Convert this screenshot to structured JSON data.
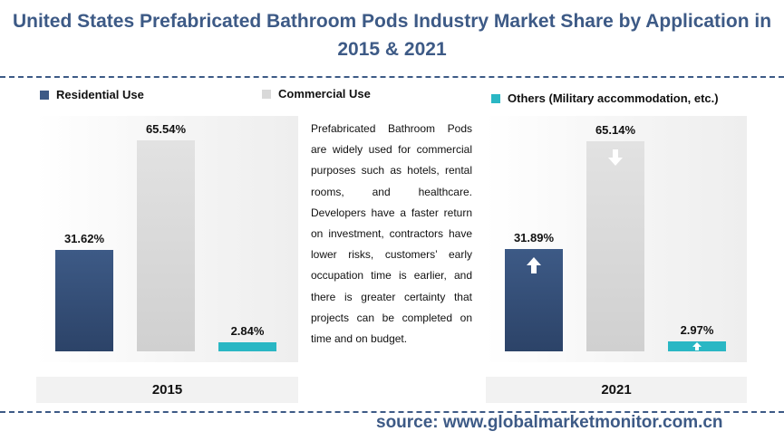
{
  "title": "United States Prefabricated Bathroom Pods Industry Market Share by Application in 2015 & 2021",
  "description": "Prefabricated Bathroom Pods are widely used for commercial purposes such as hotels, rental rooms, and healthcare. Developers have a faster return on investment, contractors have lower risks, customers’ early occupation time is earlier, and there is greater certainty that projects can be completed on time and on budget.",
  "source": "source: www.globalmarketmonitor.com.cn",
  "colors": {
    "residential": "#3d5a86",
    "commercial": "#d9d9d9",
    "others": "#2ab7c4",
    "title": "#3d5a86"
  },
  "chart_data": {
    "type": "bar",
    "categories": [
      "Residential Use",
      "Commercial Use",
      "Others (Military accommodation, etc.)"
    ],
    "series": [
      {
        "name": "2015",
        "values": [
          31.62,
          65.54,
          2.84
        ],
        "labels": [
          "31.62%",
          "65.54%",
          "2.84%"
        ]
      },
      {
        "name": "2021",
        "values": [
          31.89,
          65.14,
          2.97
        ],
        "labels": [
          "31.89%",
          "65.14%",
          "2.97%"
        ],
        "trend": [
          "up",
          "down",
          "up"
        ]
      }
    ],
    "legend": "top",
    "ylim": [
      0,
      70
    ],
    "grid": false
  }
}
